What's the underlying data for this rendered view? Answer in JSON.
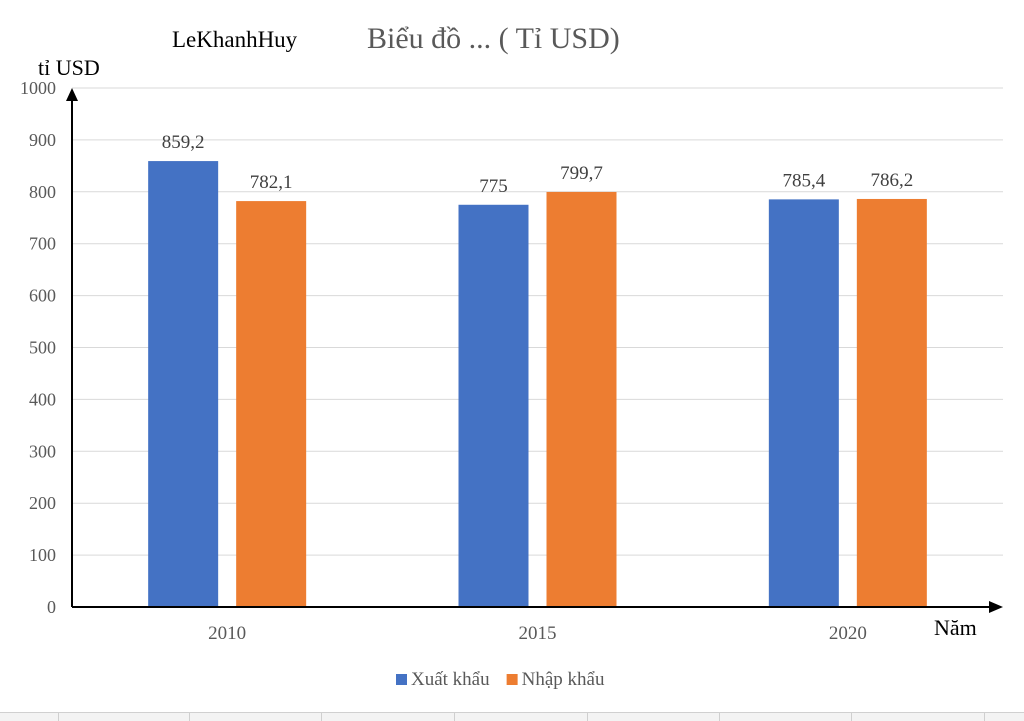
{
  "chart_data": {
    "type": "bar",
    "title": "Biểu đồ ... ( Tỉ USD)",
    "author": "LeKhanhHuy",
    "ylabel": "tỉ USD",
    "xlabel": "Năm",
    "ylim": [
      0,
      1000
    ],
    "ytick_step": 100,
    "grid": true,
    "legend_position": "bottom",
    "categories": [
      "2010",
      "2015",
      "2020"
    ],
    "series": [
      {
        "name": "Xuất khẩu",
        "color": "#4472c4",
        "values": [
          859.2,
          775,
          785.4
        ],
        "labels": [
          "859,2",
          "775",
          "785,4"
        ]
      },
      {
        "name": "Nhập khẩu",
        "color": "#ed7d31",
        "values": [
          782.1,
          799.7,
          786.2
        ],
        "labels": [
          "782,1",
          "799,7",
          "786,2"
        ]
      }
    ]
  }
}
